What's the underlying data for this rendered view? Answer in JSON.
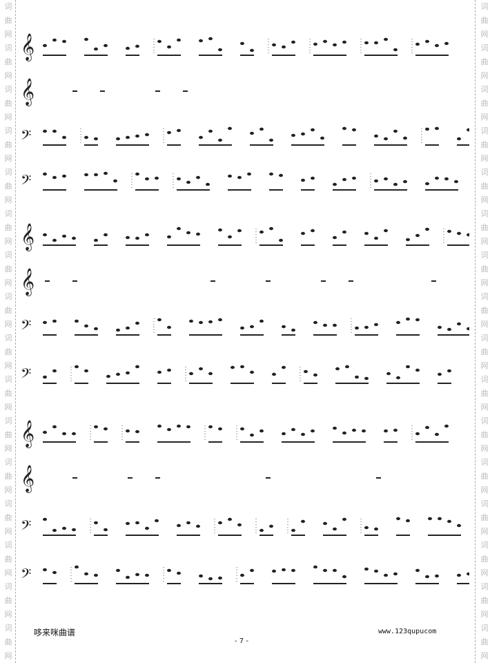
{
  "watermark": [
    "词",
    "曲",
    "网"
  ],
  "staves": [
    {
      "clef": "treble"
    },
    {
      "clef": "treble"
    },
    {
      "clef": "bass"
    },
    {
      "clef": "bass"
    },
    {
      "clef": "treble"
    },
    {
      "clef": "treble"
    },
    {
      "clef": "bass"
    },
    {
      "clef": "bass"
    },
    {
      "clef": "treble"
    },
    {
      "clef": "treble"
    },
    {
      "clef": "bass"
    },
    {
      "clef": "bass"
    }
  ],
  "clef_symbols": {
    "treble": "𝄞",
    "bass": "𝄢"
  },
  "footer": {
    "publisher": "哆来咪曲谱",
    "website": "www.123qupucom",
    "page": "- 7 -"
  }
}
